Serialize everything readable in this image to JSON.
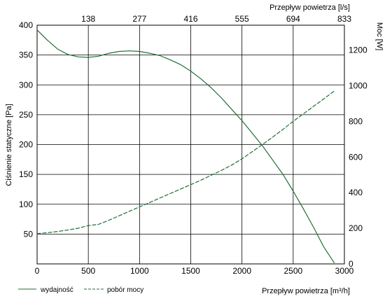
{
  "chart_data": {
    "type": "line",
    "x_bottom": {
      "label": "Przepływ powietrza [m³/h]",
      "ticks": [
        0,
        500,
        1000,
        1500,
        2000,
        2500,
        3000
      ],
      "range": [
        0,
        3000
      ]
    },
    "x_top": {
      "label": "Przepływ powietrza [l/s]",
      "ticks": [
        "138",
        "277",
        "416",
        "555",
        "694",
        "833"
      ]
    },
    "y_left": {
      "label": "Ciśnienie statyczne [Pa]",
      "ticks": [
        50,
        100,
        150,
        200,
        250,
        300,
        350,
        400
      ],
      "range": [
        0,
        400
      ]
    },
    "y_right": {
      "label": "Moc [W]",
      "ticks": [
        0,
        200,
        400,
        600,
        800,
        1000,
        1200
      ],
      "range": [
        0,
        1340
      ]
    },
    "grid": true,
    "legend_position": "bottom-left",
    "series": [
      {
        "name": "wydajność",
        "axis": "left",
        "style": "solid",
        "color": "#1f6e35",
        "x": [
          0,
          100,
          200,
          300,
          400,
          500,
          600,
          700,
          800,
          900,
          1000,
          1100,
          1200,
          1300,
          1400,
          1500,
          1600,
          1700,
          1800,
          1900,
          2000,
          2100,
          2200,
          2300,
          2400,
          2500,
          2600,
          2700,
          2800,
          2900
        ],
        "y": [
          392,
          375,
          360,
          351,
          347,
          346,
          348,
          353,
          356,
          357,
          356,
          353,
          349,
          342,
          334,
          323,
          310,
          295,
          278,
          259,
          240,
          219,
          198,
          174,
          150,
          122,
          92,
          61,
          28,
          2
        ]
      },
      {
        "name": "pobór mocy",
        "axis": "right",
        "style": "dashed",
        "color": "#1f6e35",
        "x": [
          0,
          100,
          200,
          300,
          400,
          500,
          600,
          700,
          800,
          900,
          1000,
          1100,
          1200,
          1300,
          1400,
          1500,
          1600,
          1700,
          1800,
          1900,
          2000,
          2100,
          2200,
          2300,
          2400,
          2500,
          2600,
          2700,
          2800,
          2900
        ],
        "y": [
          170,
          175,
          182,
          190,
          200,
          215,
          222,
          245,
          270,
          295,
          320,
          345,
          370,
          395,
          420,
          445,
          470,
          498,
          525,
          555,
          590,
          630,
          670,
          712,
          755,
          800,
          843,
          885,
          927,
          970
        ]
      }
    ]
  },
  "legend": {
    "items": [
      {
        "label": "wydajność",
        "style": "solid"
      },
      {
        "label": "pobór mocy",
        "style": "dashed"
      }
    ]
  }
}
